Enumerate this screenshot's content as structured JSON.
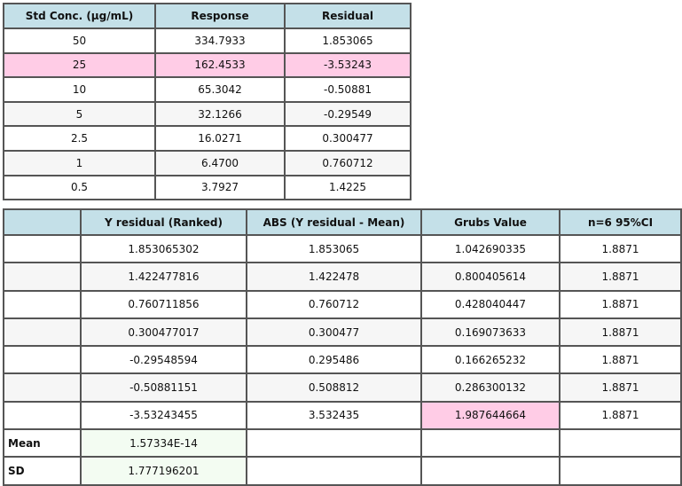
{
  "table1": {
    "headers": [
      "Std Conc. (µg/mL)",
      "Response",
      "Residual"
    ],
    "rows": [
      [
        "50",
        "334.7933",
        "1.853065"
      ],
      [
        "25",
        "162.4533",
        "-3.53243"
      ],
      [
        "10",
        "65.3042",
        "-0.50881"
      ],
      [
        "5",
        "32.1266",
        "-0.29549"
      ],
      [
        "2.5",
        "16.0271",
        "0.300477"
      ],
      [
        "1",
        "6.4700",
        "0.760712"
      ],
      [
        "0.5",
        "3.7927",
        "1.4225"
      ]
    ],
    "highlighted_row": 1
  },
  "table2": {
    "headers": [
      "",
      "Y residual (Ranked)",
      "ABS (Y residual - Mean)",
      "Grubs Value",
      "n=6 95%CI"
    ],
    "rows": [
      [
        "",
        "1.853065302",
        "1.853065",
        "1.042690335",
        "1.8871"
      ],
      [
        "",
        "1.422477816",
        "1.422478",
        "0.800405614",
        "1.8871"
      ],
      [
        "",
        "0.760711856",
        "0.760712",
        "0.428040447",
        "1.8871"
      ],
      [
        "",
        "0.300477017",
        "0.300477",
        "0.169073633",
        "1.8871"
      ],
      [
        "",
        "-0.29548594",
        "0.295486",
        "0.166265232",
        "1.8871"
      ],
      [
        "",
        "-0.50881151",
        "0.508812",
        "0.286300132",
        "1.8871"
      ],
      [
        "",
        "-3.53243455",
        "3.532435",
        "1.987644664",
        "1.8871"
      ]
    ],
    "summary": [
      {
        "label": "Mean",
        "value": "1.57334E-14"
      },
      {
        "label": "SD",
        "value": "1.777196201"
      }
    ],
    "highlighted_cell": "Grubs Value of -3.53243455"
  },
  "colors": {
    "header": "#c4e0e8",
    "highlight": "#ffcce6",
    "summary": "#f3fcf2",
    "alt_row": "#f6f6f6"
  }
}
